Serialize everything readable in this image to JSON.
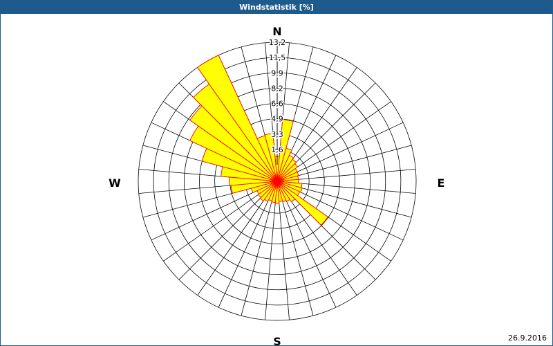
{
  "window": {
    "title": "Windstatistik [%]"
  },
  "footer": {
    "date": "26.9.2016"
  },
  "colors": {
    "title_bar": "#1f5a8c",
    "wedge_fill": "#ffff00",
    "wedge_stroke": "#ff0000",
    "grid": "#000000"
  },
  "chart_data": {
    "type": "wind-rose",
    "title": "Windstatistik [%]",
    "unit": "%",
    "compass": [
      "N",
      "E",
      "S",
      "W"
    ],
    "radial_ticks": [
      "1,6",
      "3,3",
      "4,9",
      "6,6",
      "8,2",
      "9,9",
      "11,5",
      "13,2"
    ],
    "r_max": 13.2,
    "sector_count": 36,
    "sector_width_deg": 10,
    "directions_deg": [
      0,
      10,
      20,
      30,
      40,
      50,
      60,
      70,
      80,
      90,
      100,
      110,
      120,
      130,
      140,
      150,
      160,
      170,
      180,
      190,
      200,
      210,
      220,
      230,
      240,
      250,
      260,
      270,
      280,
      290,
      300,
      310,
      320,
      330,
      340,
      350
    ],
    "values": [
      0.9,
      4.9,
      1.9,
      1.3,
      1.1,
      0.9,
      0.6,
      0.6,
      0.5,
      0.5,
      0.9,
      1.0,
      0.9,
      4.9,
      0.9,
      0.6,
      0.5,
      0.4,
      0.6,
      0.5,
      0.4,
      0.6,
      0.8,
      0.7,
      0.6,
      1.1,
      3.2,
      3.4,
      4.3,
      6.6,
      8.6,
      9.7,
      11.0,
      13.2,
      3.3,
      3.4
    ]
  }
}
